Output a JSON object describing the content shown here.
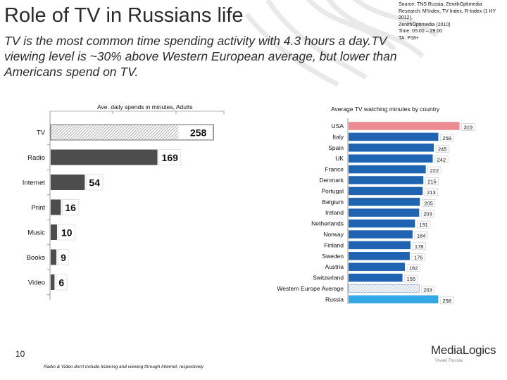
{
  "page": {
    "title": "Role of TV in Russians life",
    "subtitle": "TV is the most common time spending activity with 4.3 hours a day.TV viewing level is ~30% above Western European average, but lower than Americans spend on TV.",
    "source": "Source: TNS Russia, ZenithOptimedia\nResearch: M'Index, TV Index, R-Index (1 HY 2012),\nZenithOptimedia (2010)\nTime: 05:00 – 29:00\nTA: P18+",
    "page_number": "10",
    "footnote": "Radio & Video don't include listening and viewing through Internet, respectively",
    "logo_main": "MediaLogics",
    "logo_sub": "Vivaki Russia"
  },
  "chart_data": [
    {
      "type": "bar",
      "orientation": "horizontal",
      "title": "Ave. daily spends in minutes, Adults",
      "categories": [
        "TV",
        "Radio",
        "Internet",
        "Print",
        "Music",
        "Books",
        "Video"
      ],
      "values": [
        258,
        169,
        54,
        16,
        10,
        9,
        6
      ],
      "value_labels": [
        "258",
        "169",
        "54",
        "16",
        "10",
        "9",
        "6"
      ],
      "highlight": "TV",
      "xlim": [
        0,
        300
      ],
      "colors": {
        "bar": "#4d4d4d",
        "highlight_pattern": "diagonal-hatch"
      }
    },
    {
      "type": "bar",
      "orientation": "horizontal",
      "title": "Average TV watching minutes by country",
      "categories": [
        "USA",
        "Italy",
        "Spain",
        "UK",
        "France",
        "Denmark",
        "Portugal",
        "Belgium",
        "Ireland",
        "Netherlands",
        "Norway",
        "Finland",
        "Sweden",
        "Austria",
        "Switzerland",
        "Western Europe Average",
        "Russia"
      ],
      "values": [
        319,
        258,
        245,
        242,
        222,
        215,
        213,
        205,
        203,
        191,
        184,
        178,
        176,
        162,
        155,
        203,
        258
      ],
      "value_labels": [
        "319",
        "258",
        "245",
        "242",
        "222",
        "215",
        "213",
        "205",
        "203",
        "191",
        "184",
        "178",
        "176",
        "162",
        "155",
        "203",
        "258"
      ],
      "xlim": [
        0,
        330
      ],
      "colors": {
        "default": "#1f63b3",
        "USA": "#ec8b92",
        "Western Europe Average": "hatch",
        "Russia": "#33a8e8"
      }
    }
  ]
}
